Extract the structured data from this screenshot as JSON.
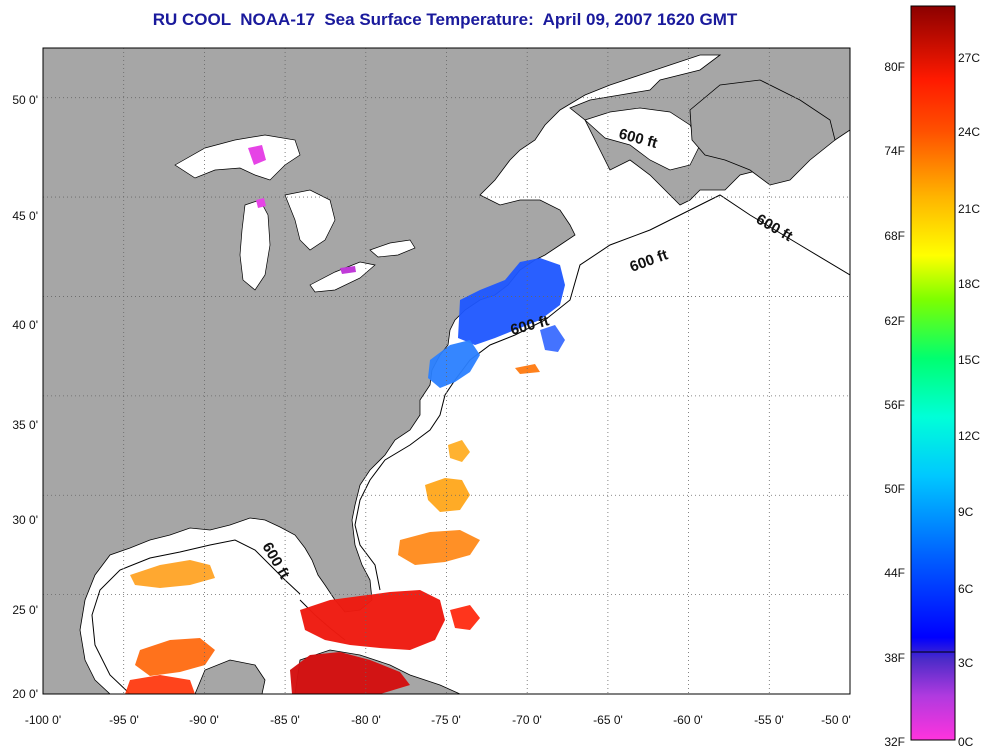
{
  "title": "RU COOL  NOAA-17  Sea Surface Temperature:  April 09, 2007 1620 GMT",
  "map": {
    "lon_range": [
      -100,
      -50
    ],
    "lat_range": [
      20,
      52.5
    ],
    "x_ticks": [
      "-100 0'",
      "-95 0'",
      "-90 0'",
      "-85 0'",
      "-80 0'",
      "-75 0'",
      "-70 0'",
      "-65 0'",
      "-60 0'",
      "-55 0'",
      "-50 0'"
    ],
    "y_ticks": [
      "50 0'",
      "45 0'",
      "40 0'",
      "35 0'",
      "30 0'",
      "25 0'",
      "20 0'"
    ],
    "grid": "dotted",
    "land_color": "#a6a6a6",
    "water_color": "#ffffff",
    "isobath_labels": [
      "600 ft",
      "600 ft",
      "600 ft",
      "600 ft",
      "600 ft"
    ]
  },
  "colorbar": {
    "fahrenheit_ticks": [
      "80F",
      "74F",
      "68F",
      "62F",
      "56F",
      "50F",
      "44F",
      "38F",
      "32F"
    ],
    "celsius_ticks": [
      "27C",
      "24C",
      "21C",
      "18C",
      "15C",
      "12C",
      "9C",
      "6C",
      "3C",
      "0C"
    ],
    "colors": [
      "#ff33dd",
      "#8a2be2",
      "#0000ff",
      "#0080ff",
      "#00ffff",
      "#00ff80",
      "#80ff00",
      "#ffff00",
      "#ff9900",
      "#ff3300",
      "#cc0000",
      "#8b0000"
    ]
  }
}
